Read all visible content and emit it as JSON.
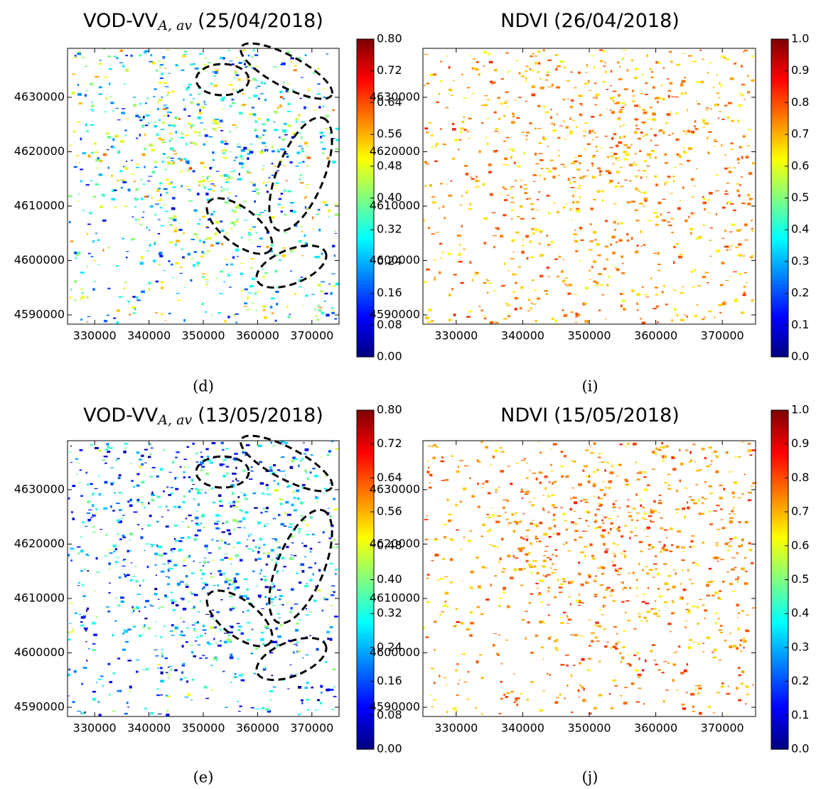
{
  "chart_data": [
    {
      "type": "heatmap",
      "title": "VOD-VV",
      "title_subscript": "A, av",
      "title_suffix": "(25/04/2018)",
      "panel_label": "(d)",
      "xlim": [
        325000,
        375000
      ],
      "xticks": [
        330000,
        340000,
        350000,
        360000,
        370000
      ],
      "ylim": [
        4588300,
        4639000
      ],
      "yticks": [
        4590000,
        4600000,
        4610000,
        4620000,
        4630000
      ],
      "colormap": "jet",
      "clim": [
        0,
        0.8
      ],
      "cticks": [
        {
          "value": 0,
          "label": "0.00"
        },
        {
          "value": 0.08,
          "label": "0.08"
        },
        {
          "value": 0.16,
          "label": "0.16"
        },
        {
          "value": 0.24,
          "label": "0.24"
        },
        {
          "value": 0.32,
          "label": "0.32"
        },
        {
          "value": 0.4,
          "label": "0.40"
        },
        {
          "value": 0.48,
          "label": "0.48"
        },
        {
          "value": 0.56,
          "label": "0.56"
        },
        {
          "value": 0.64,
          "label": "0.64"
        },
        {
          "value": 0.72,
          "label": "0.72"
        },
        {
          "value": 0.8,
          "label": "0.80"
        }
      ]
    },
    {
      "type": "heatmap",
      "title": "NDVI",
      "title_suffix": "(26/04/2018)",
      "panel_label": "(i)",
      "xlim": [
        325000,
        375000
      ],
      "xticks": [
        330000,
        340000,
        350000,
        360000,
        370000
      ],
      "ylim": [
        4588300,
        4639000
      ],
      "yticks": [
        4590000,
        4600000,
        4610000,
        4620000,
        4630000
      ],
      "colormap": "jet",
      "clim": [
        0,
        1
      ],
      "cticks": [
        {
          "value": 0,
          "label": "0.0"
        },
        0.1,
        0.2,
        0.3,
        0.4,
        0.5,
        0.6,
        0.7,
        0.8,
        0.9,
        {
          "value": 1,
          "label": "1.0"
        }
      ]
    },
    {
      "type": "heatmap",
      "title": "VOD-VV",
      "title_subscript": "A, av",
      "title_suffix": "(13/05/2018)",
      "panel_label": "(e)",
      "xlim": [
        325000,
        375000
      ],
      "xticks": [
        330000,
        340000,
        350000,
        360000,
        370000
      ],
      "ylim": [
        4588300,
        4639000
      ],
      "yticks": [
        4590000,
        4600000,
        4610000,
        4620000,
        4630000
      ],
      "colormap": "jet",
      "clim": [
        0,
        0.8
      ],
      "cticks": [
        {
          "value": 0,
          "label": "0.00"
        },
        {
          "value": 0.08,
          "label": "0.08"
        },
        {
          "value": 0.16,
          "label": "0.16"
        },
        {
          "value": 0.24,
          "label": "0.24"
        },
        {
          "value": 0.32,
          "label": "0.32"
        },
        {
          "value": 0.4,
          "label": "0.40"
        },
        {
          "value": 0.48,
          "label": "0.48"
        },
        {
          "value": 0.56,
          "label": "0.56"
        },
        {
          "value": 0.64,
          "label": "0.64"
        },
        {
          "value": 0.72,
          "label": "0.72"
        },
        {
          "value": 0.8,
          "label": "0.80"
        }
      ]
    },
    {
      "type": "heatmap",
      "title": "NDVI",
      "title_suffix": "(15/05/2018)",
      "panel_label": "(j)",
      "xlim": [
        325000,
        375000
      ],
      "xticks": [
        330000,
        340000,
        350000,
        360000,
        370000
      ],
      "ylim": [
        4588300,
        4639000
      ],
      "yticks": [
        4590000,
        4600000,
        4610000,
        4620000,
        4630000
      ],
      "colormap": "jet",
      "clim": [
        0,
        1
      ],
      "cticks": [
        {
          "value": 0,
          "label": "0.0"
        },
        0.1,
        0.2,
        0.3,
        0.4,
        0.5,
        0.6,
        0.7,
        0.8,
        0.9,
        {
          "value": 1,
          "label": "1.0"
        }
      ]
    }
  ]
}
